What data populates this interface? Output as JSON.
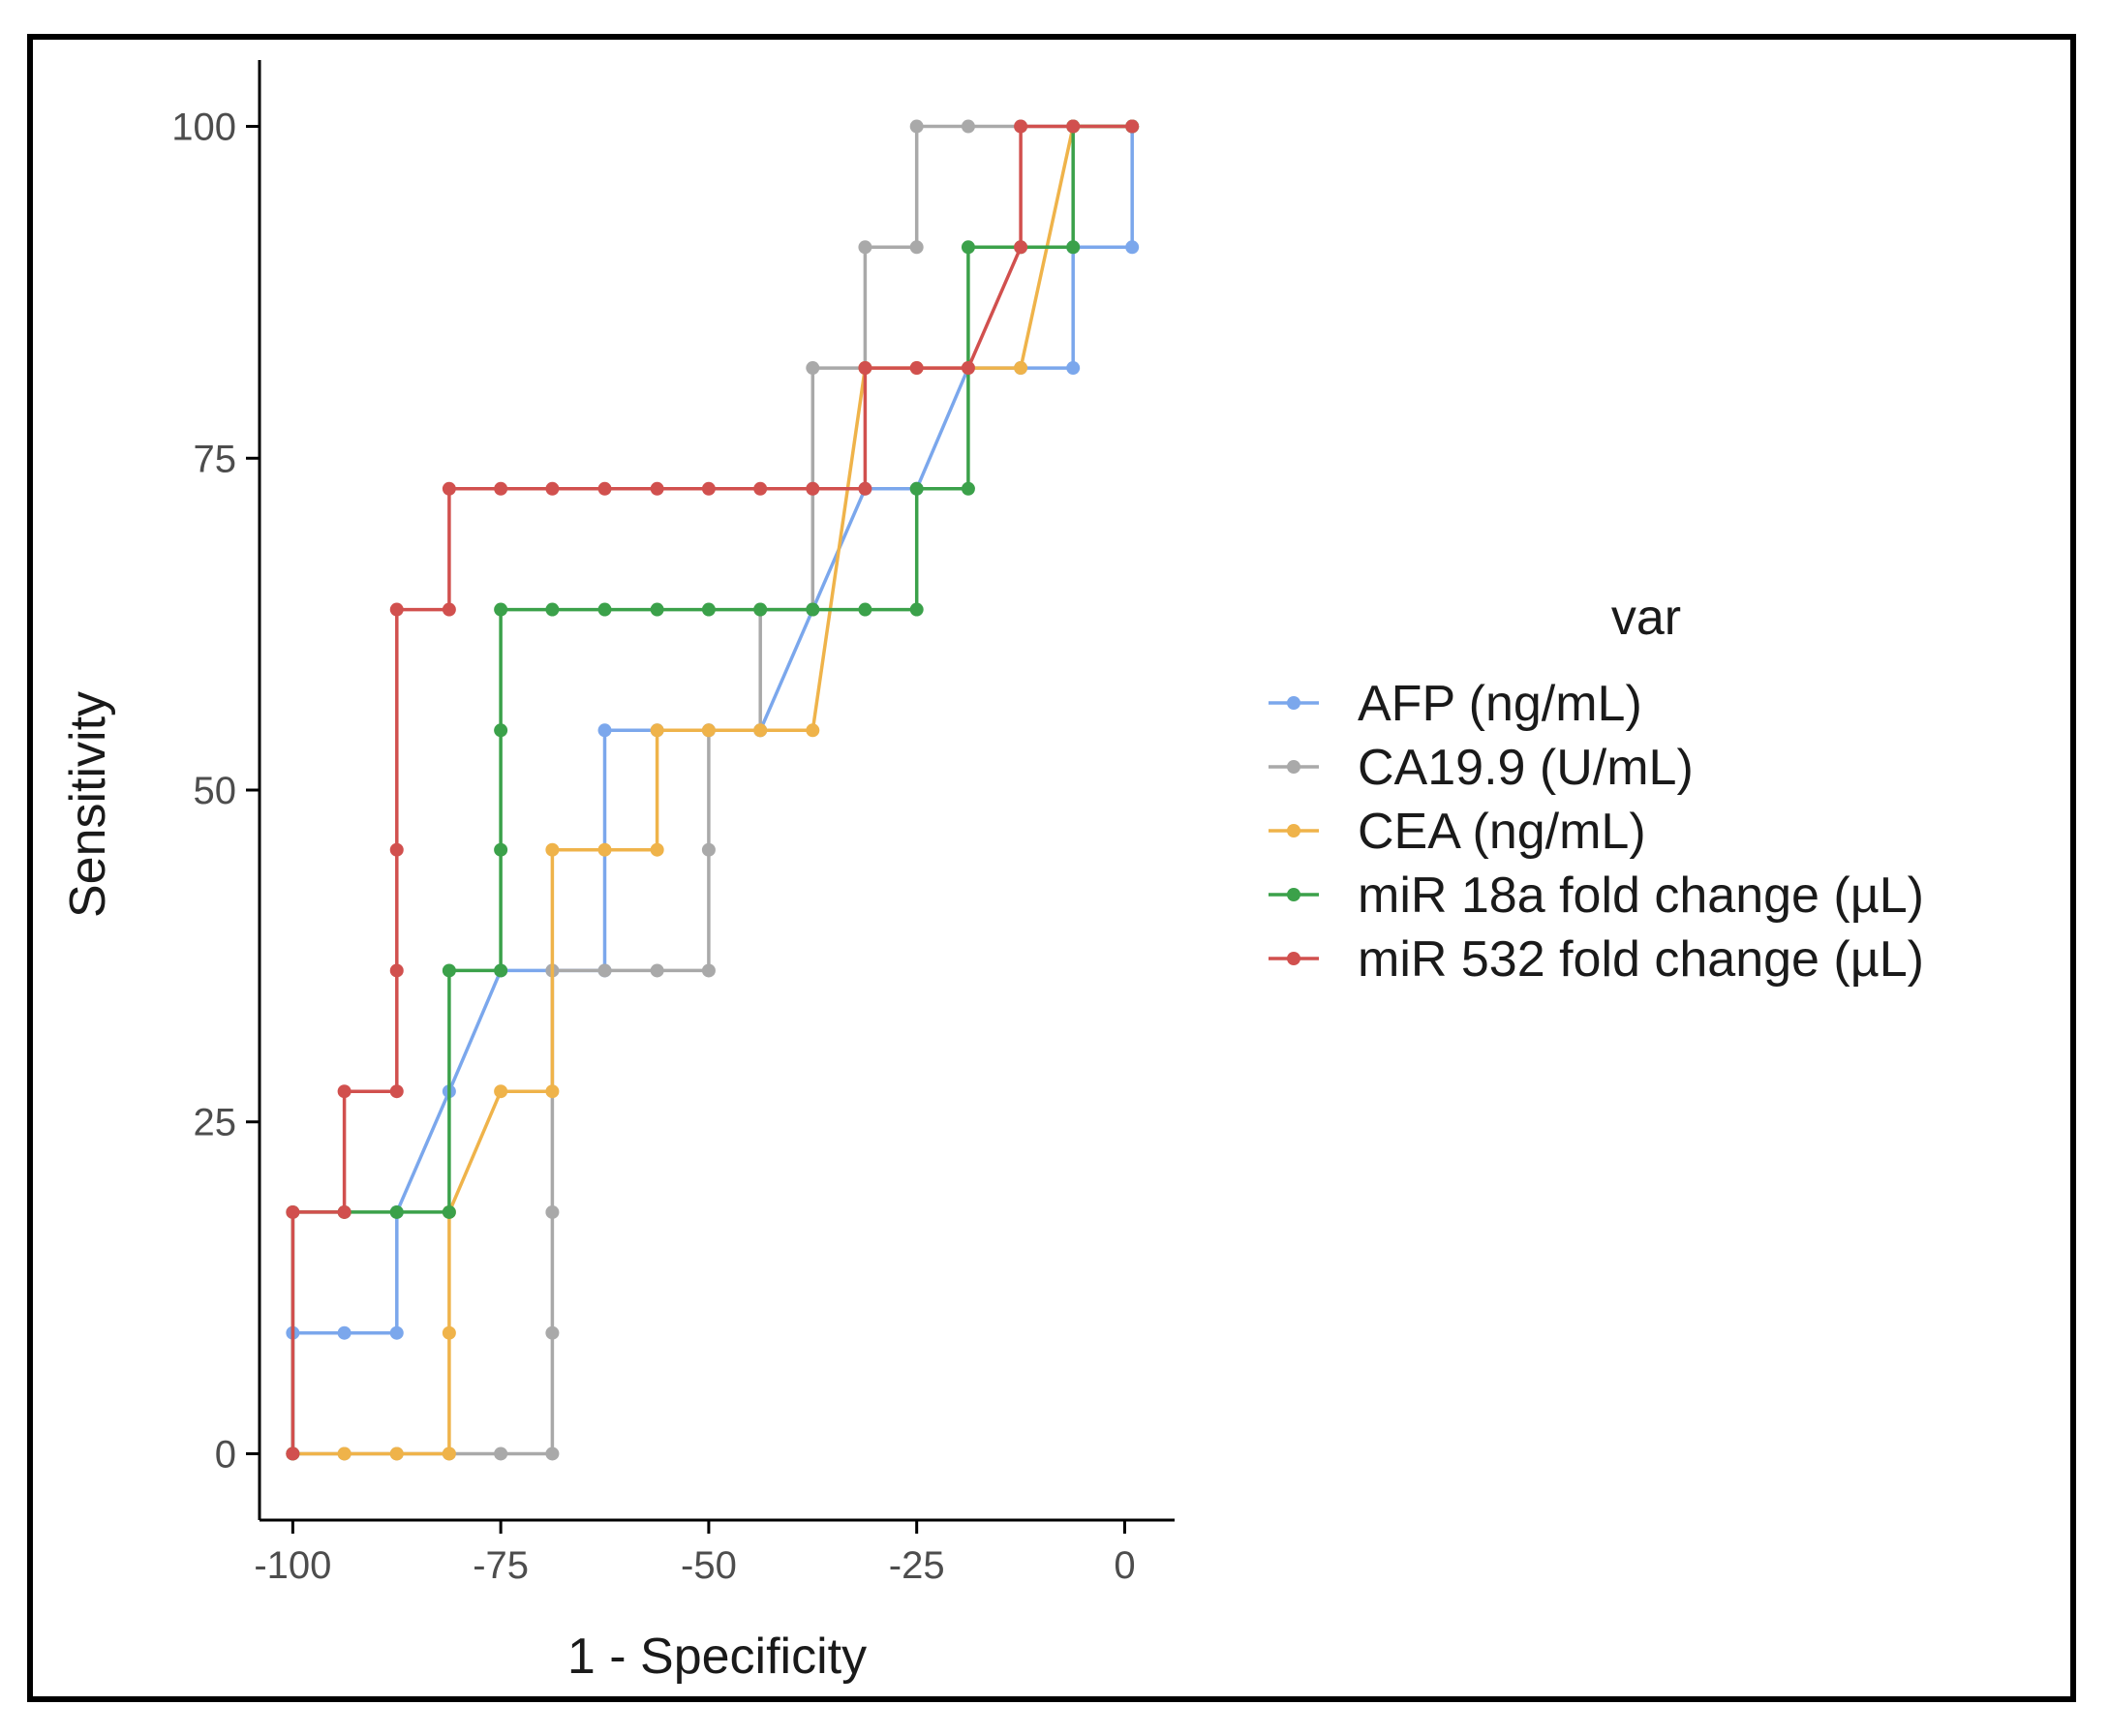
{
  "chart_data": {
    "type": "line",
    "xlabel": "1 - Specificity",
    "ylabel": "Sensitivity",
    "xlim": [
      -104,
      6
    ],
    "ylim": [
      -5,
      105
    ],
    "xticks": [
      -100,
      -75,
      -50,
      -25,
      0
    ],
    "yticks": [
      0,
      25,
      50,
      75,
      100
    ],
    "xtick_labels": [
      "-100",
      "-75",
      "-50",
      "-25",
      "0"
    ],
    "ytick_labels": [
      "0",
      "25",
      "50",
      "75",
      "100"
    ],
    "grid": false,
    "legend": {
      "title": "var",
      "position": "right"
    },
    "series": [
      {
        "name": "AFP (ng/mL)",
        "color": "#7ba7ec",
        "x": [
          -100,
          -100,
          -93.8,
          -87.5,
          -87.5,
          -81.2,
          -75,
          -68.8,
          -62.5,
          -62.5,
          -56.2,
          -50,
          -43.8,
          -37.5,
          -31.2,
          -25,
          -18.8,
          -12.5,
          -6.2,
          -6.2,
          0.9,
          0.9
        ],
        "y": [
          0,
          9.1,
          9.1,
          9.1,
          18.2,
          27.3,
          36.4,
          36.4,
          36.4,
          54.5,
          54.5,
          54.5,
          54.5,
          63.6,
          72.7,
          72.7,
          81.8,
          81.8,
          81.8,
          90.9,
          90.9,
          100
        ]
      },
      {
        "name": "CA19.9 (U/mL)",
        "color": "#a9a9a9",
        "x": [
          -100,
          -93.8,
          -87.5,
          -81.2,
          -75,
          -68.8,
          -68.8,
          -68.8,
          -68.8,
          -62.5,
          -56.2,
          -50,
          -50,
          -50,
          -43.8,
          -43.8,
          -37.5,
          -37.5,
          -37.5,
          -31.2,
          -31.2,
          -25,
          -25,
          -18.8,
          -12.5,
          -6.2,
          0.9
        ],
        "y": [
          0,
          0,
          0,
          0,
          0,
          0,
          9.1,
          18.2,
          36.4,
          36.4,
          36.4,
          36.4,
          45.5,
          54.5,
          54.5,
          63.6,
          63.6,
          72.7,
          81.8,
          81.8,
          90.9,
          90.9,
          100,
          100,
          100,
          100,
          100
        ]
      },
      {
        "name": "CEA (ng/mL)",
        "color": "#efb34a",
        "x": [
          -100,
          -93.8,
          -87.5,
          -81.2,
          -81.2,
          -81.2,
          -75,
          -68.8,
          -68.8,
          -62.5,
          -56.2,
          -56.2,
          -50,
          -43.8,
          -37.5,
          -31.2,
          -25,
          -18.8,
          -12.5,
          -6.2,
          0.9
        ],
        "y": [
          0,
          0,
          0,
          0,
          9.1,
          18.2,
          27.3,
          27.3,
          45.5,
          45.5,
          45.5,
          54.5,
          54.5,
          54.5,
          54.5,
          81.8,
          81.8,
          81.8,
          81.8,
          100,
          100
        ]
      },
      {
        "name": "miR 18a fold change (µL)",
        "color": "#3ba14a",
        "x": [
          -100,
          -100,
          -93.8,
          -87.5,
          -81.2,
          -81.2,
          -75,
          -75,
          -75,
          -75,
          -68.8,
          -62.5,
          -56.2,
          -50,
          -43.8,
          -37.5,
          -31.2,
          -25,
          -25,
          -18.8,
          -18.8,
          -12.5,
          -6.2,
          -6.2,
          0.9
        ],
        "y": [
          0,
          18.2,
          18.2,
          18.2,
          18.2,
          36.4,
          36.4,
          45.5,
          54.5,
          63.6,
          63.6,
          63.6,
          63.6,
          63.6,
          63.6,
          63.6,
          63.6,
          63.6,
          72.7,
          72.7,
          90.9,
          90.9,
          90.9,
          100,
          100
        ]
      },
      {
        "name": "miR 532 fold change (µL)",
        "color": "#d1504e",
        "x": [
          -100,
          -100,
          -93.8,
          -93.8,
          -87.5,
          -87.5,
          -87.5,
          -87.5,
          -81.2,
          -81.2,
          -75,
          -68.8,
          -62.5,
          -56.2,
          -50,
          -43.8,
          -37.5,
          -31.2,
          -31.2,
          -25,
          -18.8,
          -12.5,
          -12.5,
          -6.2,
          0.9
        ],
        "y": [
          0,
          18.2,
          18.2,
          27.3,
          27.3,
          36.4,
          45.5,
          63.6,
          63.6,
          72.7,
          72.7,
          72.7,
          72.7,
          72.7,
          72.7,
          72.7,
          72.7,
          72.7,
          81.8,
          81.8,
          81.8,
          90.9,
          100,
          100,
          100
        ]
      }
    ]
  }
}
